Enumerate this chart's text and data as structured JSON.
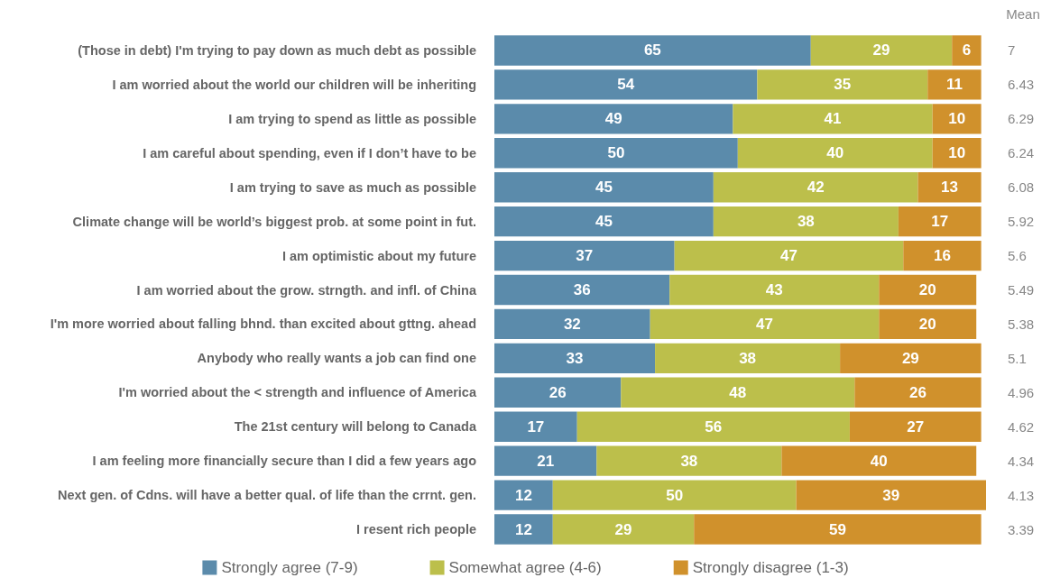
{
  "chart_data": {
    "type": "bar",
    "orientation": "horizontal",
    "stacked": true,
    "data_labels": true,
    "grid": false,
    "legend": "bottom",
    "tick_labels": "y",
    "xlim": [
      0,
      101
    ],
    "categories": [
      "(Those in debt) I'm trying to pay down as much debt as possible",
      "I am worried about the world our children will be inheriting",
      "I am trying to spend as little as possible",
      "I am careful about spending, even if I don’t have to be",
      "I am trying to save as much as possible",
      "Climate change will be world’s biggest prob. at some point in fut.",
      "I am optimistic about my future",
      "I am worried about the grow. strngth. and infl. of China",
      "I'm more worried about falling bhnd. than excited about gttng. ahead",
      "Anybody who really wants a job can find one",
      "I'm worried about the < strength and influence of America",
      "The 21st century will belong to Canada",
      "I am feeling more financially secure than I did a few years ago",
      "Next gen. of Cdns. will have a better qual. of life than the crrnt. gen.",
      "I resent rich people"
    ],
    "series": [
      {
        "name": "Strongly agree (7-9)",
        "color": "#5b8bab",
        "values": [
          65,
          54,
          49,
          50,
          45,
          45,
          37,
          36,
          32,
          33,
          26,
          17,
          21,
          12,
          12
        ]
      },
      {
        "name": "Somewhat agree (4-6)",
        "color": "#bcbf4b",
        "values": [
          29,
          35,
          41,
          40,
          42,
          38,
          47,
          43,
          47,
          38,
          48,
          56,
          38,
          50,
          29
        ]
      },
      {
        "name": "Strongly disagree (1-3)",
        "color": "#d0912c",
        "values": [
          6,
          11,
          10,
          10,
          13,
          17,
          16,
          20,
          20,
          29,
          26,
          27,
          40,
          39,
          59
        ]
      }
    ],
    "annotations": [
      "Mean",
      "7",
      "6.43",
      "6.29",
      "6.24",
      "6.08",
      "5.92",
      "5.6",
      "5.49",
      "5.38",
      "5.1",
      "4.96",
      "4.62",
      "4.34",
      "4.13",
      "3.39"
    ]
  }
}
